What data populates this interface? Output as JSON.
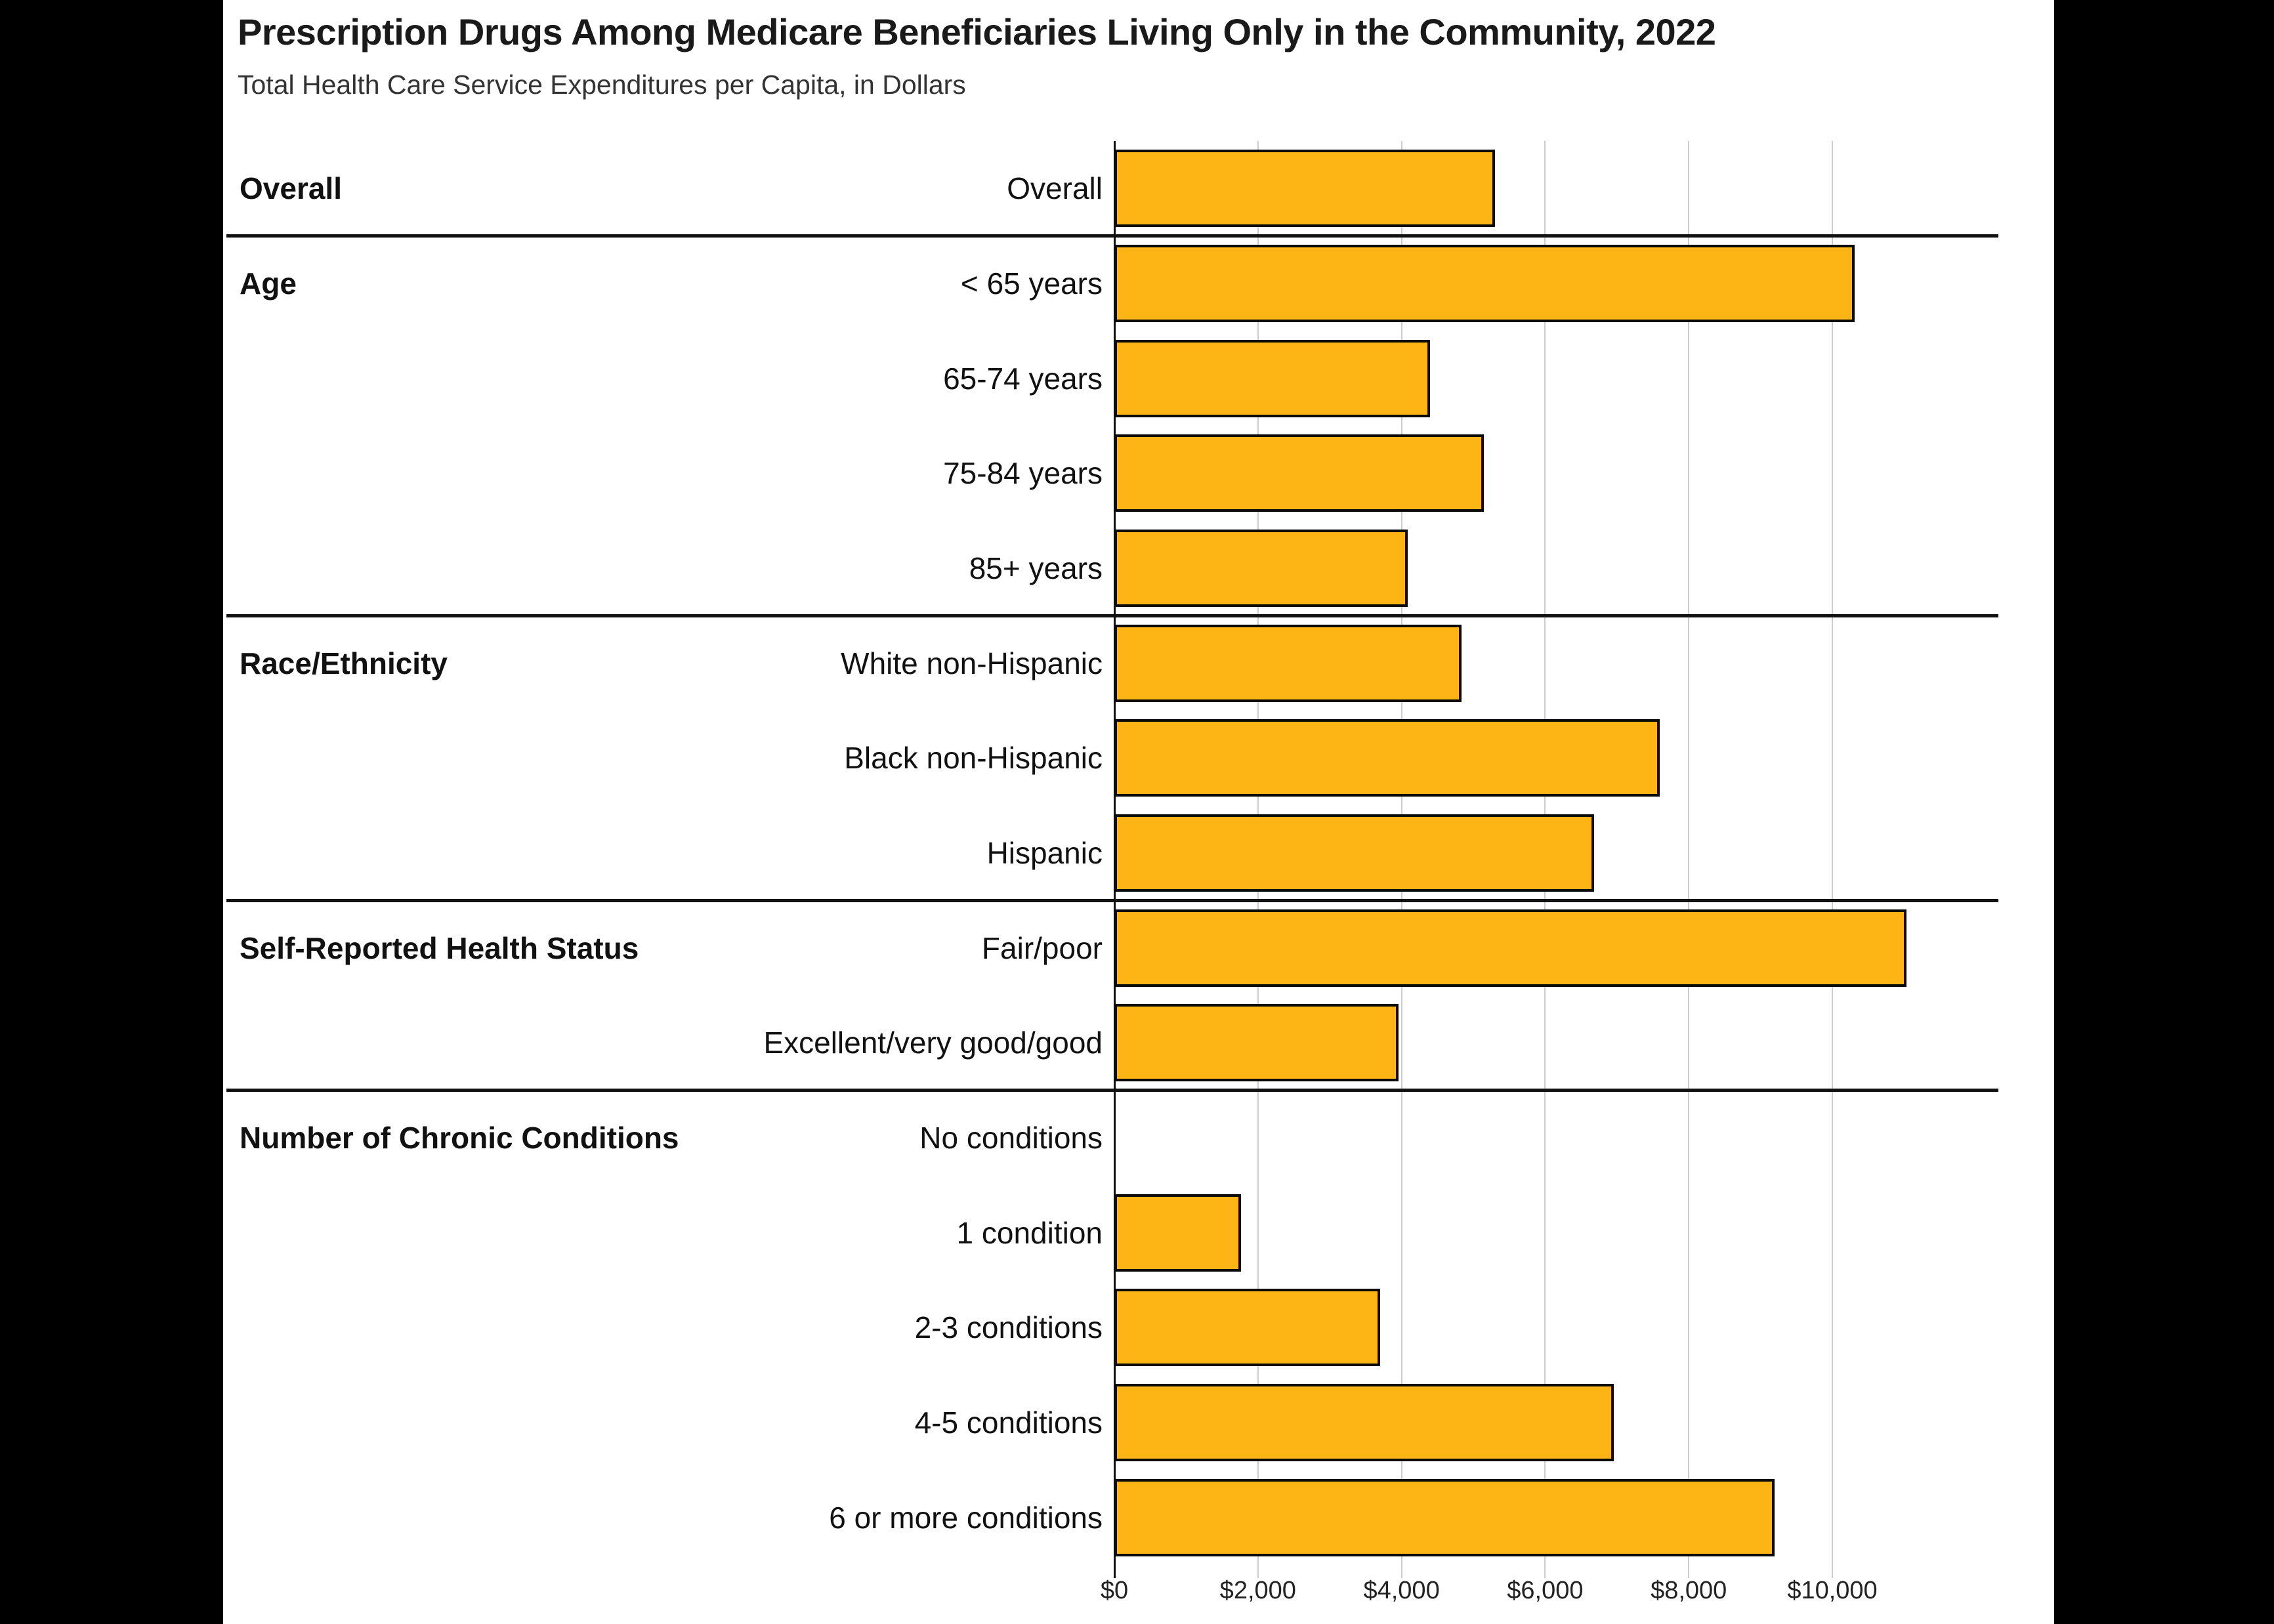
{
  "header": {
    "title": "Prescription Drugs Among Medicare Beneficiaries Living Only in the Community, 2022",
    "subtitle": "Total Health Care Service Expenditures per Capita, in Dollars"
  },
  "chart_data": {
    "type": "bar",
    "orientation": "horizontal",
    "title": "Prescription Drugs Among Medicare Beneficiaries Living Only in the Community, 2022",
    "subtitle": "Total Health Care Service Expenditures per Capita, in Dollars",
    "categories": [
      "Overall",
      "< 65 years",
      "65-74 years",
      "75-84 years",
      "85+ years",
      "White non-Hispanic",
      "Black non-Hispanic",
      "Hispanic",
      "Fair/poor",
      "Excellent/very good/good",
      "No conditions",
      "1 condition",
      "2-3 conditions",
      "4-5 conditions",
      "6 or more conditions"
    ],
    "values": [
      5300,
      10310,
      4400,
      5150,
      4090,
      4840,
      7600,
      6680,
      11030,
      3960,
      0,
      1760,
      3700,
      6960,
      9200
    ],
    "groups": [
      {
        "label": "Overall",
        "count": 1
      },
      {
        "label": "Age",
        "count": 4
      },
      {
        "label": "Race/Ethnicity",
        "count": 3
      },
      {
        "label": "Self-Reported Health Status",
        "count": 2
      },
      {
        "label": "Number of Chronic Conditions",
        "count": 5
      }
    ],
    "x_axis": {
      "ticks": [
        0,
        2000,
        4000,
        6000,
        8000,
        10000
      ],
      "tick_labels": [
        "$0",
        "$2,000",
        "$4,000",
        "$6,000",
        "$8,000",
        "$10,000"
      ],
      "xlim": [
        0,
        12100
      ],
      "unit": "dollars per capita"
    },
    "grid": true,
    "legend": "none",
    "bar_color": "#FCB515",
    "bar_border_color": "#0B0B0B",
    "gridline_color": "#CCCCCC",
    "separator_color": "#111111"
  }
}
